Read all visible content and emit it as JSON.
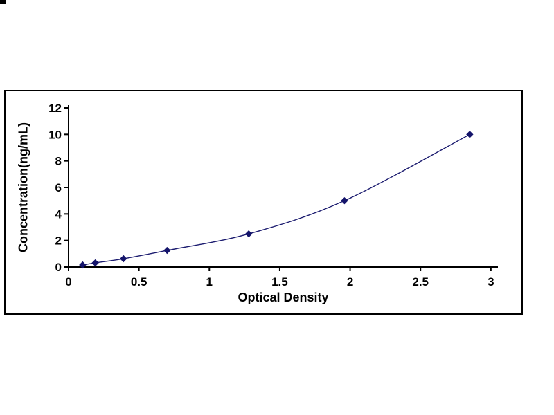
{
  "page": {
    "background": "#ffffff"
  },
  "artifact": {
    "present": true
  },
  "chart_data": {
    "type": "line",
    "title": "",
    "xlabel": "Optical Density",
    "ylabel": "Concentration(ng/mL)",
    "x": [
      0.1,
      0.19,
      0.39,
      0.7,
      1.28,
      1.96,
      2.85
    ],
    "y": [
      0.156,
      0.312,
      0.625,
      1.25,
      2.5,
      5,
      10
    ],
    "xlim": [
      0,
      3.05
    ],
    "ylim": [
      0,
      12
    ],
    "xticks": [
      0,
      0.5,
      1,
      1.5,
      2,
      2.5,
      3
    ],
    "yticks": [
      0,
      2,
      4,
      6,
      8,
      10,
      12
    ],
    "grid": false,
    "legend": "none",
    "frame_border_color": "#000000",
    "axis_color": "#000000",
    "line_color": "#1b1b6f",
    "marker": "diamond",
    "marker_color": "#14146b"
  }
}
